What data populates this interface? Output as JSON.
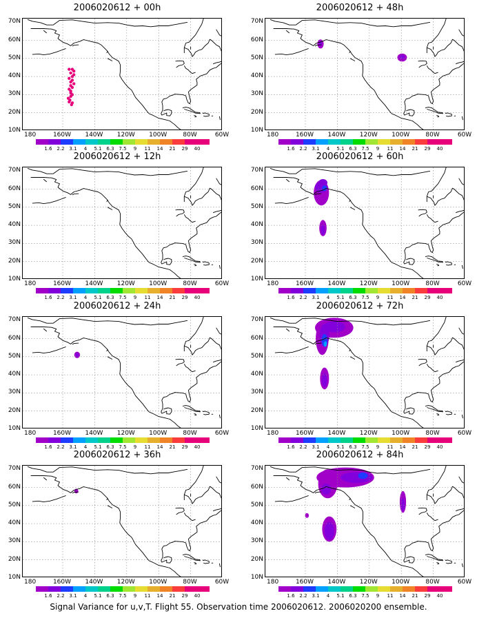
{
  "footer": "Signal Variance for u,v,T. Flight 55. Observation time 2006020612. 2006020200 ensemble.",
  "y_ticks": [
    "70N",
    "60N",
    "50N",
    "40N",
    "30N",
    "20N",
    "10N"
  ],
  "x_ticks": [
    "180",
    "160W",
    "140W",
    "120W",
    "100W",
    "80W",
    "60W"
  ],
  "colorbar": {
    "labels": [
      "1.6",
      "2.2",
      "3.1",
      "4",
      "5.1",
      "6.3",
      "7.5",
      "9",
      "11",
      "14",
      "21",
      "29",
      "40"
    ],
    "colors": [
      "#a000c8",
      "#8200dc",
      "#1e3cff",
      "#00a0ff",
      "#00c8c8",
      "#00d28c",
      "#00dc00",
      "#a0e632",
      "#e6dc32",
      "#e6af2d",
      "#f08228",
      "#fa3c3c",
      "#e6007a"
    ]
  },
  "panels": [
    {
      "title": "2006020612 + 00h"
    },
    {
      "title": "2006020612 + 48h"
    },
    {
      "title": "2006020612 + 12h"
    },
    {
      "title": "2006020612 + 60h"
    },
    {
      "title": "2006020612 + 24h"
    },
    {
      "title": "2006020612 + 72h"
    },
    {
      "title": "2006020612 + 36h"
    },
    {
      "title": "2006020612 + 84h"
    }
  ]
}
